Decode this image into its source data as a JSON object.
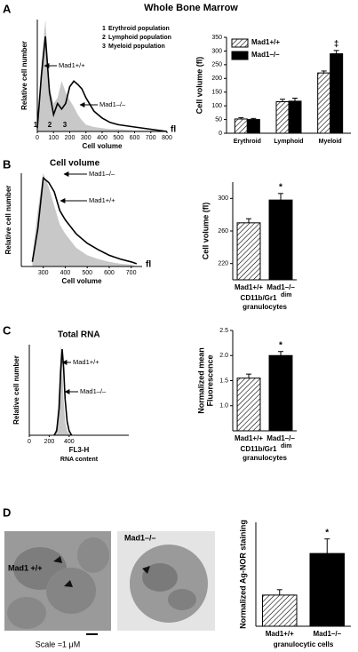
{
  "figure": {
    "title": "Whole Bone Marrow",
    "panels": [
      "A",
      "B",
      "C",
      "D"
    ],
    "images": [
      {
        "label": "Mad1 +/+"
      },
      {
        "label": "Mad1–/–"
      }
    ],
    "scale": "Scale =1 μM"
  },
  "chart_data": [
    {
      "type": "line",
      "ylabel": "Relative cell number",
      "xlabel": "Cell volume",
      "x_unit": "fl",
      "regions": [
        {
          "label": "1",
          "name": "Erythroid population"
        },
        {
          "label": "2",
          "name": "Lymphoid population"
        },
        {
          "label": "3",
          "name": "Myeloid population"
        }
      ],
      "x": [
        0,
        25,
        50,
        75,
        100,
        125,
        150,
        175,
        200,
        225,
        250,
        275,
        300,
        350,
        400,
        450,
        500,
        600,
        700,
        800
      ],
      "xlim": [
        0,
        800
      ],
      "xticks": [
        0,
        100,
        200,
        300,
        400,
        500,
        600,
        700,
        800
      ],
      "ylim": [
        0,
        100
      ],
      "series": [
        {
          "name": "Mad1+/+",
          "color": "#c8c8c8",
          "style": "area",
          "values": [
            5,
            60,
            100,
            40,
            25,
            30,
            45,
            35,
            28,
            22,
            15,
            10,
            6,
            4,
            3,
            2,
            2,
            1,
            1,
            0
          ]
        },
        {
          "name": "Mad1–/–",
          "color": "#000000",
          "style": "line",
          "values": [
            3,
            50,
            85,
            35,
            15,
            25,
            20,
            25,
            40,
            45,
            42,
            38,
            30,
            18,
            12,
            8,
            6,
            4,
            2,
            0
          ]
        }
      ]
    },
    {
      "type": "bar",
      "ylabel": "Cell volume (fl)",
      "categories": [
        "Erythroid",
        "Lymphoid",
        "Myeloid"
      ],
      "ylim": [
        0,
        350
      ],
      "yticks": [
        0,
        50,
        100,
        150,
        200,
        250,
        300,
        350
      ],
      "legend": "upper left",
      "series": [
        {
          "name": "Mad1+/+",
          "color": "#ffffff",
          "hatch": true,
          "values": [
            52,
            115,
            220
          ],
          "errors": [
            5,
            9,
            7
          ]
        },
        {
          "name": "Mad1–/–",
          "color": "#000000",
          "hatch": false,
          "values": [
            50,
            117,
            290
          ],
          "errors": [
            4,
            11,
            12
          ]
        }
      ],
      "annotations": [
        "‡"
      ]
    },
    {
      "type": "line",
      "title": "Cell volume",
      "ylabel": "Relative cell number",
      "xlabel": "Cell volume",
      "x_unit": "fl",
      "x": [
        250,
        275,
        300,
        325,
        350,
        375,
        400,
        450,
        500,
        550,
        600,
        650,
        700,
        725
      ],
      "xlim": [
        200,
        750
      ],
      "xticks": [
        300,
        400,
        500,
        600,
        700
      ],
      "ylim": [
        0,
        100
      ],
      "series": [
        {
          "name": "Mad1+/+",
          "color": "#c8c8c8",
          "style": "area",
          "values": [
            10,
            60,
            100,
            85,
            65,
            45,
            35,
            20,
            12,
            8,
            5,
            3,
            2,
            0
          ]
        },
        {
          "name": "Mad1–/–",
          "color": "#000000",
          "style": "line",
          "values": [
            5,
            40,
            95,
            90,
            80,
            60,
            50,
            35,
            25,
            18,
            12,
            8,
            5,
            3
          ]
        }
      ]
    },
    {
      "type": "bar",
      "ylabel": "Cell volume (fl)",
      "categories": [
        "Mad1+/+",
        "Mad1–/–"
      ],
      "xlabel": "CD11b/Gr1",
      "xlabel_sup": "dim",
      "xlabel2": "granulocytes",
      "ylim": [
        200,
        320
      ],
      "yticks": [
        220,
        260,
        300
      ],
      "values": [
        270,
        298
      ],
      "errors": [
        5,
        8
      ],
      "hatch": [
        true,
        false
      ],
      "color": "#000000",
      "annotations": [
        "*"
      ]
    },
    {
      "type": "line",
      "title": "Total RNA",
      "ylabel": "Relative cell number",
      "xlabel": "FL3-H",
      "xlabel2": "RNA content",
      "x": [
        250,
        275,
        300,
        315,
        330,
        345,
        360,
        380,
        400,
        425
      ],
      "xlim": [
        0,
        1000
      ],
      "xticks": [
        0,
        200,
        400
      ],
      "ylim": [
        0,
        100
      ],
      "series": [
        {
          "name": "Mad1+/+",
          "color": "#c8c8c8",
          "style": "area",
          "values": [
            0,
            10,
            60,
            100,
            80,
            40,
            15,
            5,
            2,
            0
          ]
        },
        {
          "name": "Mad1–/–",
          "color": "#000000",
          "style": "line",
          "values": [
            0,
            5,
            30,
            70,
            95,
            75,
            40,
            15,
            5,
            0
          ]
        }
      ]
    },
    {
      "type": "bar",
      "ylabel": "Normalized mean",
      "ylabel2": "Fluorescence",
      "categories": [
        "Mad1+/+",
        "Mad1–/–"
      ],
      "xlabel": "CD11b/Gr1",
      "xlabel_sup": "dim",
      "xlabel2": "granulocytes",
      "ylim": [
        0.5,
        2.5
      ],
      "yticks": [
        {
          "value": 1,
          "label": "1.0"
        },
        1.5,
        {
          "value": 2,
          "label": "2.0"
        },
        2.5
      ],
      "values": [
        1.55,
        2.0
      ],
      "errors": [
        0.08,
        0.08
      ],
      "hatch": [
        true,
        false
      ],
      "color": "#000000",
      "annotations": [
        "*"
      ]
    },
    {
      "type": "bar",
      "ylabel": "Normalized Ag-NOR staining",
      "categories": [
        "Mad1+/+",
        "Mad1–/–"
      ],
      "xlabel": "granulocytic cells",
      "ylim": [
        0,
        2.5
      ],
      "values": [
        0.75,
        1.75
      ],
      "errors": [
        0.13,
        0.35
      ],
      "hatch": [
        true,
        false
      ],
      "color": "#000000",
      "annotations": [
        "*"
      ]
    }
  ]
}
